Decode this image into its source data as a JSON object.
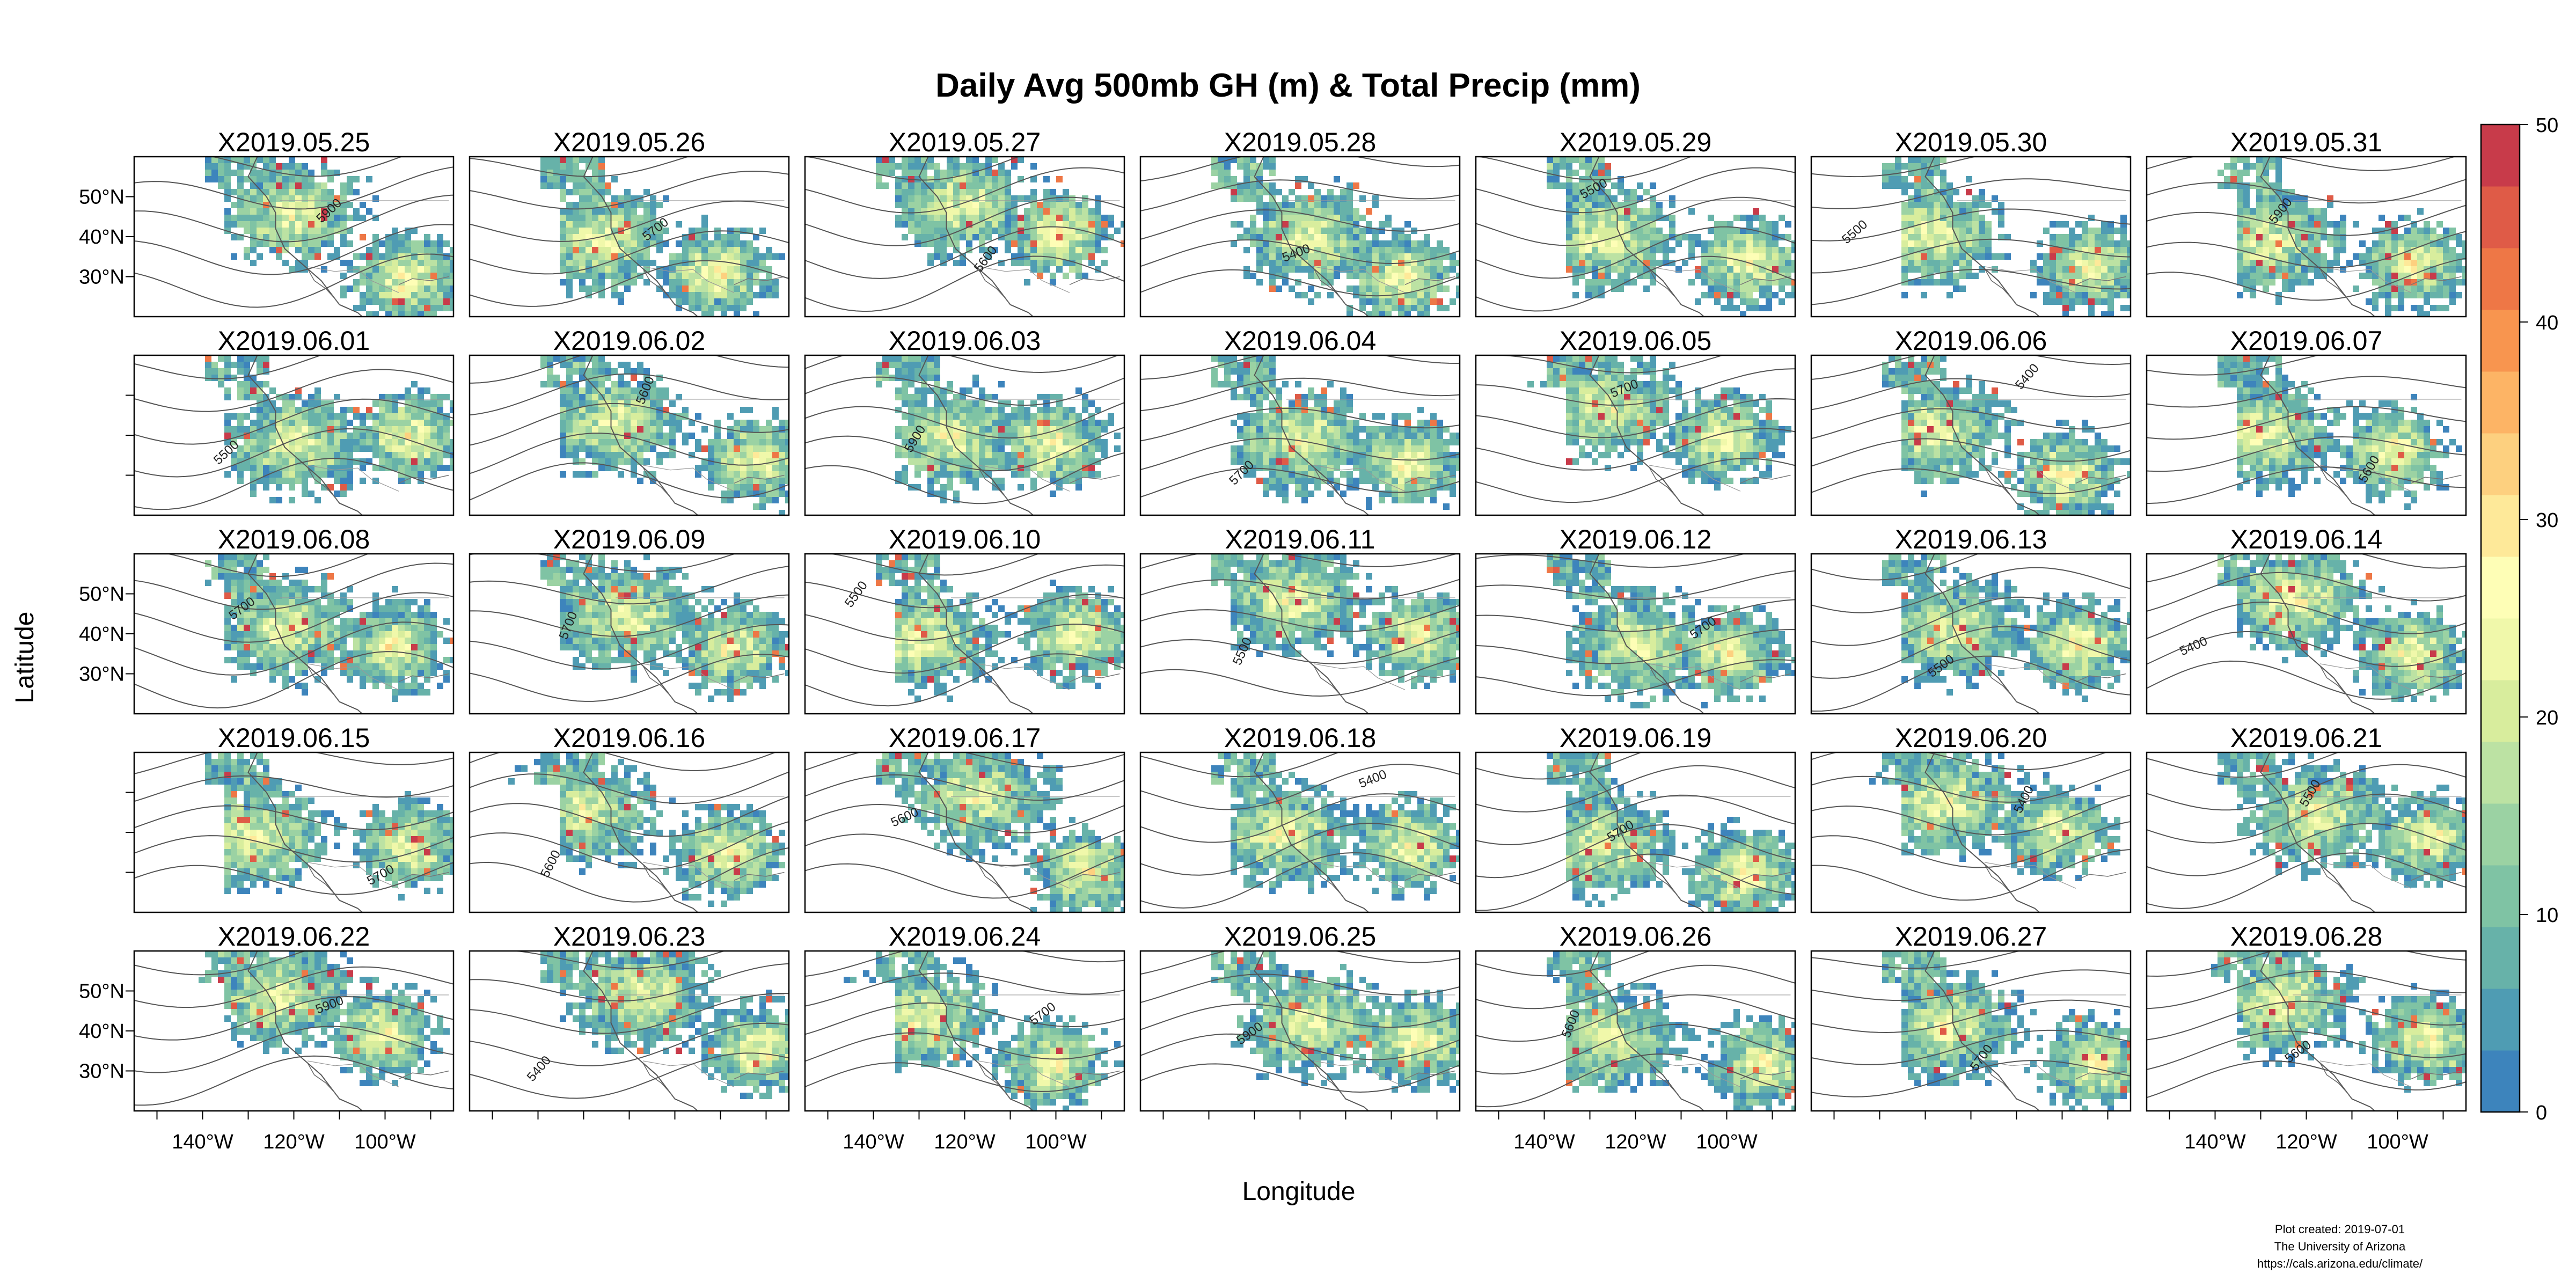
{
  "title": "Daily Avg 500mb GH (m) & Total Precip (mm)",
  "panels": [
    "X2019.05.25",
    "X2019.05.26",
    "X2019.05.27",
    "X2019.05.28",
    "X2019.05.29",
    "X2019.05.30",
    "X2019.05.31",
    "X2019.06.01",
    "X2019.06.02",
    "X2019.06.03",
    "X2019.06.04",
    "X2019.06.05",
    "X2019.06.06",
    "X2019.06.07",
    "X2019.06.08",
    "X2019.06.09",
    "X2019.06.10",
    "X2019.06.11",
    "X2019.06.12",
    "X2019.06.13",
    "X2019.06.14",
    "X2019.06.15",
    "X2019.06.16",
    "X2019.06.17",
    "X2019.06.18",
    "X2019.06.19",
    "X2019.06.20",
    "X2019.06.21",
    "X2019.06.22",
    "X2019.06.23",
    "X2019.06.24",
    "X2019.06.25",
    "X2019.06.26",
    "X2019.06.27",
    "X2019.06.28"
  ],
  "lat_ticks": [
    "50°N",
    "40°N",
    "30°N"
  ],
  "lon_ticks": [
    "140°W",
    "120°W",
    "100°W"
  ],
  "ylabel": "Latitude",
  "xlabel": "Longitude",
  "colorbar": {
    "min": 0,
    "max": 50,
    "ticks": [
      "0",
      "10",
      "20",
      "30",
      "40",
      "50"
    ],
    "colors": [
      "#3d84bc",
      "#4f9cb3",
      "#67b2a9",
      "#7fc3a4",
      "#9bd2a3",
      "#bce2a3",
      "#d8ed9d",
      "#f0f8aa",
      "#fefeb6",
      "#fee999",
      "#fdd07f",
      "#fdb465",
      "#f8954f",
      "#ee7746",
      "#df5b47",
      "#c83b4a"
    ]
  },
  "contour_labels": [
    "5900",
    "5600",
    "5500",
    "5400",
    "5700"
  ],
  "credits": [
    "Plot created: 2019-07-01",
    "The University of Arizona",
    "https://cals.arizona.edu/climate/"
  ]
}
